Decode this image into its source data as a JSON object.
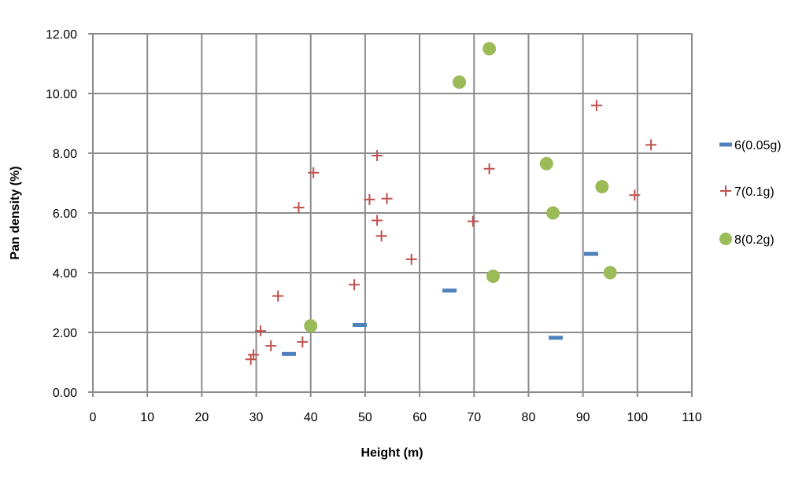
{
  "chart_data": {
    "type": "scatter",
    "xlabel": "Height (m)",
    "ylabel": "Pan density (%)",
    "xlim": [
      0,
      110
    ],
    "ylim": [
      0,
      12
    ],
    "x_ticks": [
      "0",
      "10",
      "20",
      "30",
      "40",
      "50",
      "60",
      "70",
      "80",
      "90",
      "100",
      "110"
    ],
    "y_ticks": [
      "0.00",
      "2.00",
      "4.00",
      "6.00",
      "8.00",
      "10.00",
      "12.00"
    ],
    "grid": true,
    "legend_position": "right",
    "series": [
      {
        "name": "6(0.05g)",
        "marker": "dash",
        "color": "#4f81bd",
        "points": [
          [
            36,
            1.28
          ],
          [
            49,
            2.25
          ],
          [
            65.5,
            3.4
          ],
          [
            85,
            1.82
          ],
          [
            91.5,
            4.63
          ]
        ]
      },
      {
        "name": "7(0.1g)",
        "marker": "plus",
        "color": "#c0504d",
        "points": [
          [
            29,
            1.1
          ],
          [
            29.5,
            1.25
          ],
          [
            30.8,
            2.05
          ],
          [
            32.7,
            1.55
          ],
          [
            34,
            3.22
          ],
          [
            37.8,
            6.18
          ],
          [
            38.5,
            1.68
          ],
          [
            40.5,
            7.35
          ],
          [
            48,
            3.6
          ],
          [
            50.8,
            6.45
          ],
          [
            52.2,
            7.92
          ],
          [
            52.2,
            5.75
          ],
          [
            53,
            5.23
          ],
          [
            54,
            6.48
          ],
          [
            58.5,
            4.45
          ],
          [
            69.8,
            5.72
          ],
          [
            72.8,
            7.48
          ],
          [
            92.5,
            9.6
          ],
          [
            99.5,
            6.6
          ],
          [
            102.5,
            8.28
          ]
        ]
      },
      {
        "name": "8(0.2g)",
        "marker": "circle",
        "color": "#9bbb59",
        "points": [
          [
            40,
            2.22
          ],
          [
            67.3,
            10.38
          ],
          [
            72.8,
            11.5
          ],
          [
            73.5,
            3.88
          ],
          [
            83.3,
            7.65
          ],
          [
            84.5,
            6.0
          ],
          [
            93.5,
            6.88
          ],
          [
            95,
            4.0
          ]
        ]
      }
    ]
  }
}
